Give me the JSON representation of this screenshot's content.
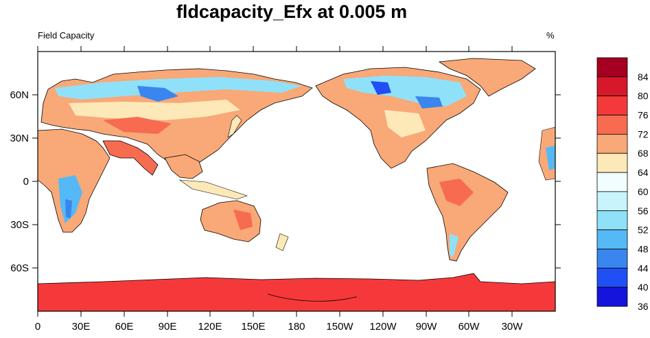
{
  "title": "fldcapacity_Efx at 0.005 m",
  "subtitle_left": "Field Capacity",
  "subtitle_right": "%",
  "map": {
    "projection": "cylindrical equidistant, centered on 180",
    "lon_labels": [
      "0",
      "30E",
      "60E",
      "90E",
      "120E",
      "150E",
      "180",
      "150W",
      "120W",
      "90W",
      "60W",
      "30W"
    ],
    "lat_labels": [
      "60N",
      "30N",
      "0",
      "30S",
      "60S"
    ],
    "land_fill_note": "field capacity shaded over land; oceans white"
  },
  "colorbar": {
    "labels": [
      "84",
      "80",
      "76",
      "72",
      "68",
      "64",
      "60",
      "56",
      "52",
      "48",
      "44",
      "40",
      "36"
    ],
    "colors": [
      "#a50022",
      "#d7182a",
      "#f5393a",
      "#f76b50",
      "#f9a877",
      "#fde8b8",
      "#f1fdfe",
      "#c8f4fc",
      "#8fe1fa",
      "#55b9f5",
      "#3a86ef",
      "#1f4ff5",
      "#1414dc"
    ]
  },
  "chart_data": {
    "type": "heatmap",
    "title": "fldcapacity_Efx at 0.005 m",
    "variable": "Field Capacity",
    "units": "%",
    "colorbar_levels": [
      36,
      40,
      44,
      48,
      52,
      56,
      60,
      64,
      68,
      72,
      76,
      80,
      84
    ],
    "x_ticks": [
      "0",
      "30E",
      "60E",
      "90E",
      "120E",
      "150E",
      "180",
      "150W",
      "120W",
      "90W",
      "60W",
      "30W"
    ],
    "y_ticks": [
      "60N",
      "30N",
      "0",
      "30S",
      "60S"
    ]
  }
}
